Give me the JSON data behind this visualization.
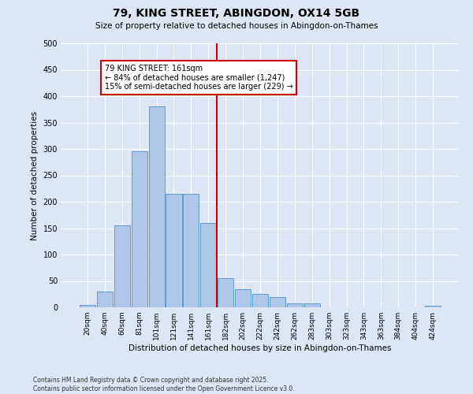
{
  "title": "79, KING STREET, ABINGDON, OX14 5GB",
  "subtitle": "Size of property relative to detached houses in Abingdon-on-Thames",
  "xlabel": "Distribution of detached houses by size in Abingdon-on-Thames",
  "ylabel": "Number of detached properties",
  "footnote1": "Contains HM Land Registry data © Crown copyright and database right 2025.",
  "footnote2": "Contains public sector information licensed under the Open Government Licence v3.0.",
  "annotation_title": "79 KING STREET: 161sqm",
  "annotation_line1": "← 84% of detached houses are smaller (1,247)",
  "annotation_line2": "15% of semi-detached houses are larger (229) →",
  "bar_color": "#aec6e8",
  "bar_edge_color": "#5b9bd5",
  "vline_color": "#cc0000",
  "annotation_box_color": "#cc0000",
  "annotation_bg": "white",
  "background_color": "#dce6f5",
  "grid_color": "white",
  "categories": [
    "20sqm",
    "40sqm",
    "60sqm",
    "81sqm",
    "101sqm",
    "121sqm",
    "141sqm",
    "161sqm",
    "182sqm",
    "202sqm",
    "222sqm",
    "242sqm",
    "262sqm",
    "283sqm",
    "303sqm",
    "323sqm",
    "343sqm",
    "363sqm",
    "384sqm",
    "404sqm",
    "424sqm"
  ],
  "bar_heights": [
    5,
    30,
    155,
    295,
    380,
    215,
    215,
    160,
    55,
    35,
    25,
    20,
    7,
    7,
    0,
    0,
    0,
    0,
    0,
    0,
    3
  ],
  "vline_index": 7,
  "ylim": [
    0,
    500
  ],
  "yticks": [
    0,
    50,
    100,
    150,
    200,
    250,
    300,
    350,
    400,
    450,
    500
  ],
  "figsize": [
    6.0,
    5.0
  ],
  "dpi": 100
}
